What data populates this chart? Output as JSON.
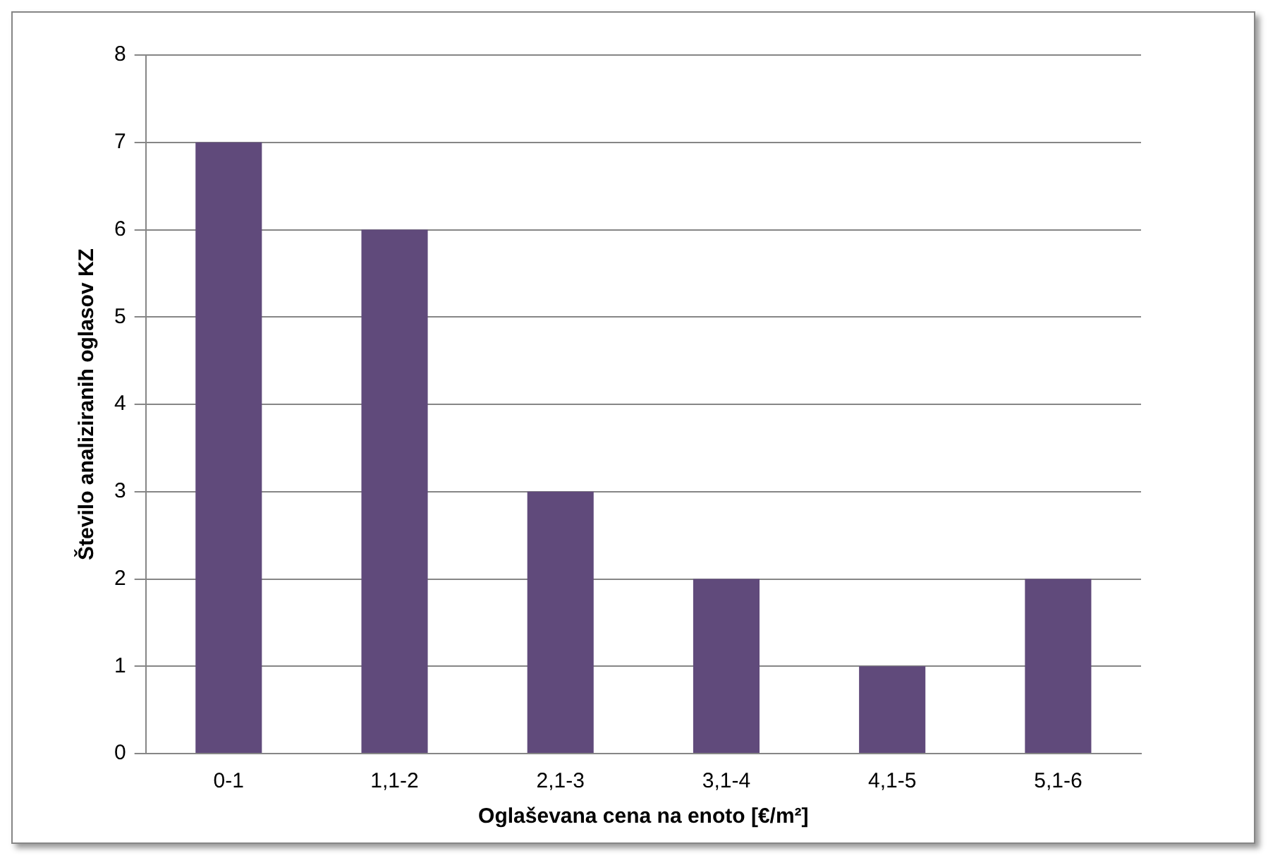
{
  "chart_data": {
    "type": "bar",
    "xlabel": "Oglaševana cena na enoto [€/m²]",
    "ylabel": "Število analiziranih oglasov KZ",
    "categories": [
      "0-1",
      "1,1-2",
      "2,1-3",
      "3,1-4",
      "4,1-5",
      "5,1-6"
    ],
    "values": [
      7,
      6,
      3,
      2,
      1,
      2
    ],
    "color": "#604a7b",
    "ylim": [
      0,
      8
    ],
    "yticks": [
      0,
      1,
      2,
      3,
      4,
      5,
      6,
      7,
      8
    ],
    "grid": "y",
    "legend": false
  }
}
